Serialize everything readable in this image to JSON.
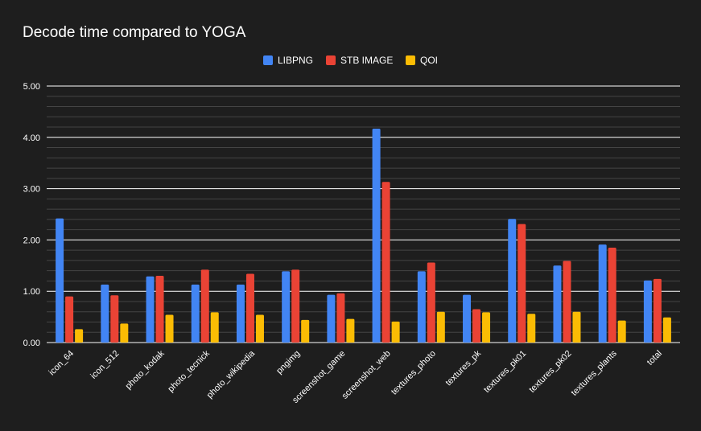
{
  "chart_data": {
    "type": "bar",
    "title": "Decode time compared to YOGA",
    "xlabel": "",
    "ylabel": "",
    "ylim": [
      0,
      5
    ],
    "yticks": [
      "0.00",
      "1.00",
      "2.00",
      "3.00",
      "4.00",
      "5.00"
    ],
    "grid": true,
    "legend_position": "top-center",
    "categories": [
      "icon_64",
      "icon_512",
      "photo_kodak",
      "photo_tecnick",
      "photo_wikipedia",
      "pngimg",
      "screenshot_game",
      "screenshot_web",
      "textures_photo",
      "textures_pk",
      "textures_pk01",
      "textures_pk02",
      "textures_plants",
      "total"
    ],
    "series": [
      {
        "name": "LIBPNG",
        "color": "#4285f4",
        "values": [
          2.42,
          1.13,
          1.29,
          1.13,
          1.13,
          1.39,
          0.93,
          4.17,
          1.39,
          0.93,
          2.41,
          1.5,
          1.91,
          1.21
        ]
      },
      {
        "name": "STB IMAGE",
        "color": "#ea4335",
        "values": [
          0.9,
          0.92,
          1.3,
          1.42,
          1.34,
          1.42,
          0.96,
          3.13,
          1.56,
          0.65,
          2.31,
          1.59,
          1.85,
          1.24
        ]
      },
      {
        "name": "QOI",
        "color": "#fbbc04",
        "values": [
          0.26,
          0.37,
          0.54,
          0.59,
          0.54,
          0.44,
          0.46,
          0.41,
          0.6,
          0.59,
          0.56,
          0.6,
          0.43,
          0.49
        ]
      }
    ]
  },
  "colors": {
    "background": "#1e1e1e",
    "major_grid": "#ffffff",
    "minor_grid": "#444444",
    "text": "#ffffff"
  }
}
